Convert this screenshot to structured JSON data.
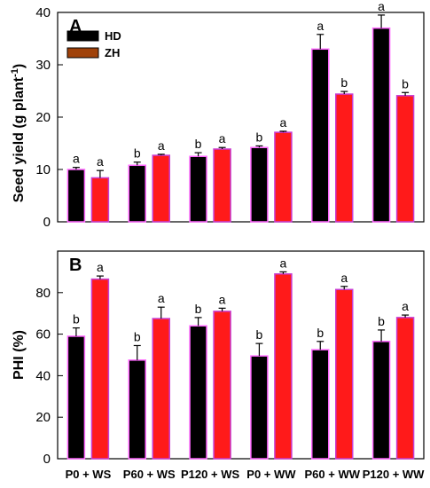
{
  "chart_data": [
    {
      "panel": "A",
      "type": "bar",
      "ylabel": "Seed yield (g plant",
      "ylabel_sup": "-1",
      "ylabel_tail": ")",
      "ylim": [
        0,
        40
      ],
      "yticks": [
        0,
        10,
        20,
        30,
        40
      ],
      "categories": [
        "P0 + WS",
        "P60 + WS",
        "P120 + WS",
        "P0 + WW",
        "P60 + WW",
        "P120 + WW"
      ],
      "legend": {
        "placement": "top-left"
      },
      "series": [
        {
          "name": "HD",
          "color": "#000000",
          "values": [
            10.0,
            10.8,
            12.5,
            14.2,
            33.0,
            37.0
          ],
          "errors": [
            0.4,
            0.6,
            0.7,
            0.3,
            2.8,
            2.5
          ],
          "labels": [
            "a",
            "b",
            "b",
            "b",
            "a",
            "a"
          ]
        },
        {
          "name": "ZH",
          "color": "#ff1a1a",
          "values": [
            8.4,
            12.7,
            13.9,
            17.1,
            24.4,
            24.1
          ],
          "errors": [
            1.4,
            0.2,
            0.3,
            0.2,
            0.5,
            0.6
          ],
          "labels": [
            "a",
            "a",
            "a",
            "a",
            "b",
            "b"
          ]
        }
      ]
    },
    {
      "panel": "B",
      "type": "bar",
      "ylabel": "PHI (%)",
      "ylim": [
        0,
        100
      ],
      "yticks": [
        0,
        20,
        40,
        60,
        80
      ],
      "categories": [
        "P0 + WS",
        "P60 + WS",
        "P120 + WS",
        "P0 + WW",
        "P60 + WW",
        "P120 + WW"
      ],
      "series": [
        {
          "name": "HD",
          "color": "#000000",
          "values": [
            59.0,
            47.5,
            64.0,
            49.5,
            52.5,
            56.5
          ],
          "errors": [
            4.0,
            7.0,
            4.0,
            6.0,
            4.0,
            5.5
          ],
          "labels": [
            "b",
            "b",
            "b",
            "b",
            "b",
            "b"
          ]
        },
        {
          "name": "ZH",
          "color": "#ff1a1a",
          "values": [
            86.5,
            67.5,
            71.0,
            89.0,
            81.5,
            68.0
          ],
          "errors": [
            1.5,
            5.5,
            1.5,
            1.0,
            1.5,
            1.2
          ],
          "labels": [
            "a",
            "a",
            "a",
            "a",
            "a",
            "a"
          ]
        }
      ]
    }
  ]
}
